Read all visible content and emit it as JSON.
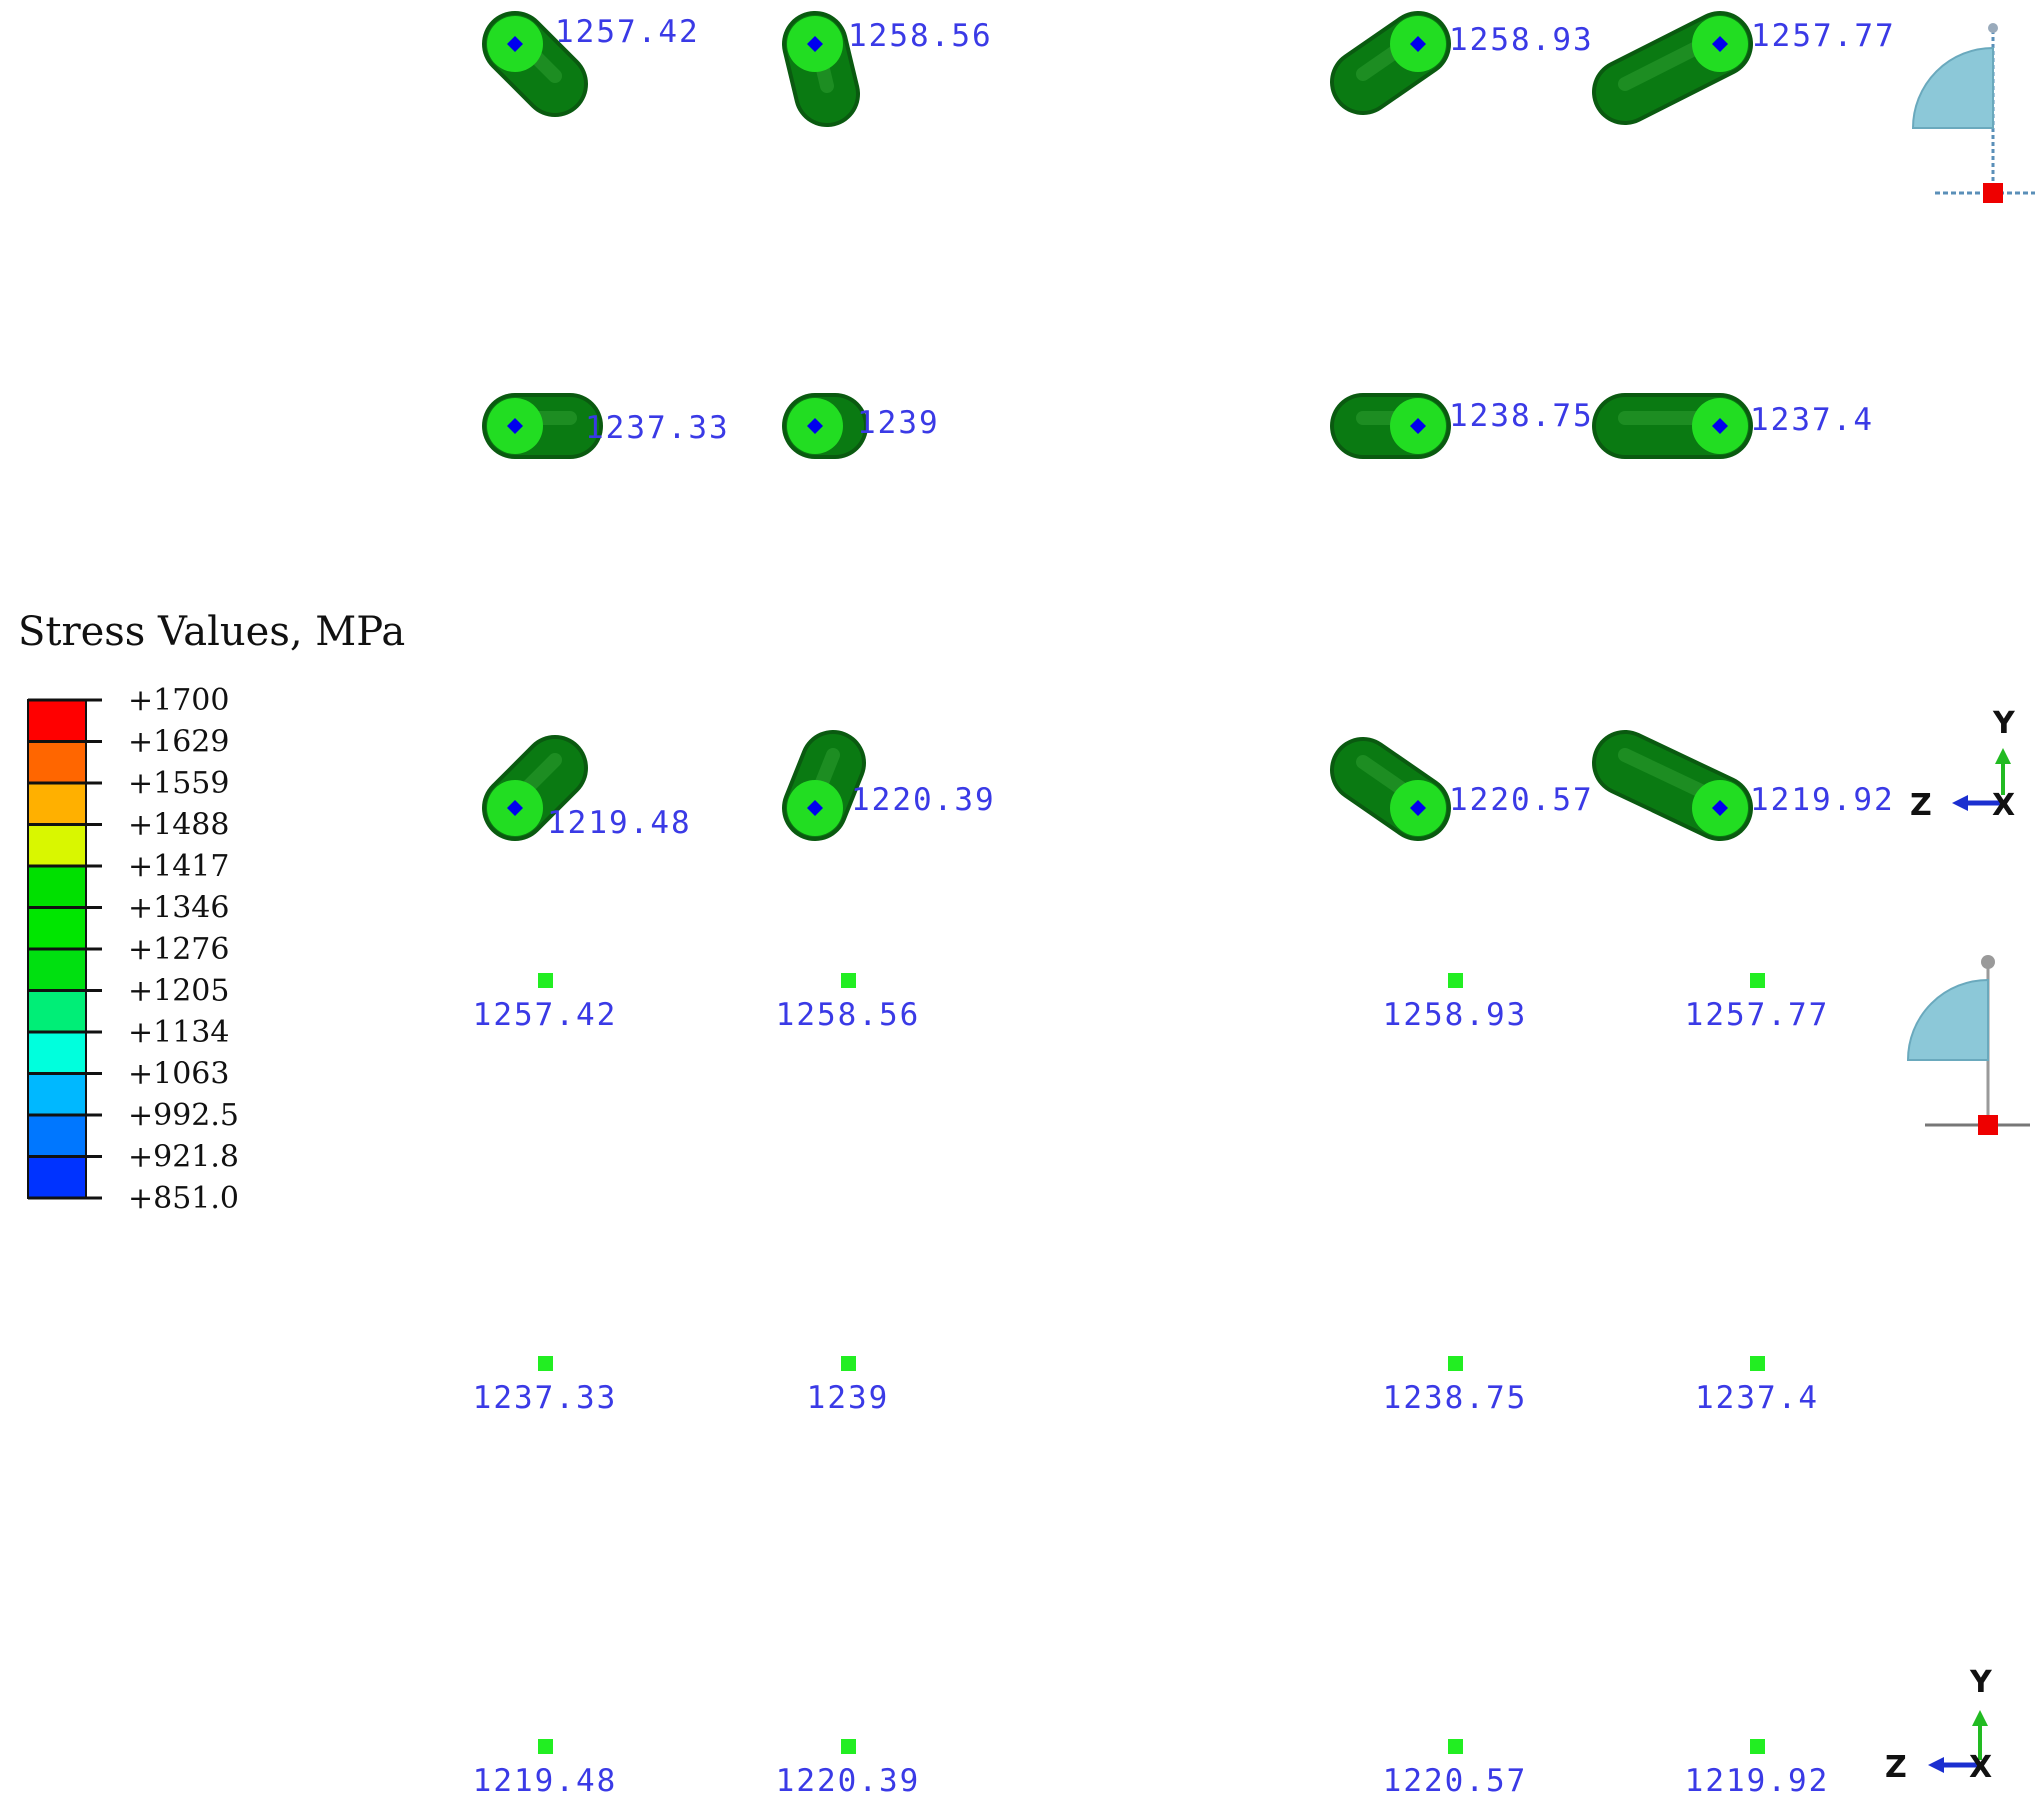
{
  "legend": {
    "title": "Stress Values, MPa",
    "ticks": [
      "+1700",
      "+1629",
      "+1559",
      "+1488",
      "+1417",
      "+1346",
      "+1276",
      "+1205",
      "+1134",
      "+1063",
      "+992.5",
      "+921.8",
      "+851.0"
    ],
    "band_colors": [
      "#ff0000",
      "#ff6600",
      "#ffb000",
      "#d9f700",
      "#00e000",
      "#00e600",
      "#00e010",
      "#00ee77",
      "#00ffdd",
      "#00b8ff",
      "#0077ff",
      "#0033ff"
    ]
  },
  "view_3d": {
    "rows": [
      [
        "1257.42",
        "1258.56",
        "1258.93",
        "1257.77"
      ],
      [
        "1237.33",
        "1239",
        "1238.75",
        "1237.4"
      ],
      [
        "1219.48",
        "1220.39",
        "1220.57",
        "1219.92"
      ]
    ]
  },
  "view_2d": {
    "rows": [
      [
        "1257.42",
        "1258.56",
        "1258.93",
        "1257.77"
      ],
      [
        "1237.33",
        "1239",
        "1238.75",
        "1237.4"
      ],
      [
        "1219.48",
        "1220.39",
        "1220.57",
        "1219.92"
      ]
    ]
  },
  "triad": {
    "y": "Y",
    "z": "Z",
    "x": "X"
  },
  "colors": {
    "element_dark": "#0a7a12",
    "element_light": "#22dd22",
    "node": "#0000ee",
    "label": "#3a3ae6",
    "boundary_marker": "#ee0000",
    "section": "#8cc8d8",
    "triad_y": "#22bb22",
    "triad_z": "#1b2fd0"
  }
}
